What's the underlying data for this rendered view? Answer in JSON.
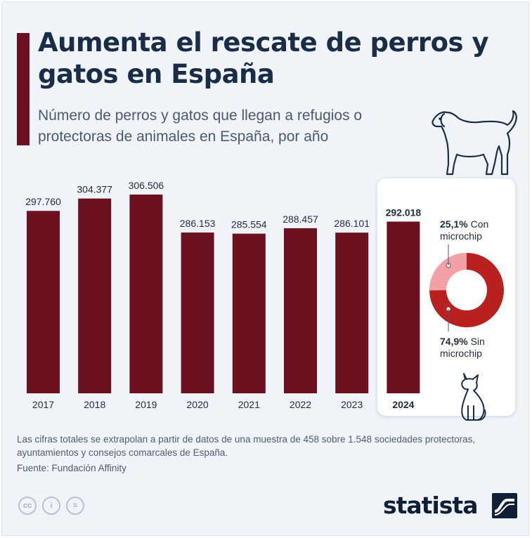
{
  "title": "Aumenta el rescate de perros y gatos en España",
  "subtitle": "Número de perros y gatos que llegan a refugios o protectoras de animales en España, por año",
  "chart_data": [
    {
      "type": "bar",
      "categories": [
        "2017",
        "2018",
        "2019",
        "2020",
        "2021",
        "2022",
        "2023",
        "2024"
      ],
      "values": [
        297760,
        304377,
        306506,
        286153,
        285554,
        288457,
        286101,
        292018
      ],
      "value_labels": [
        "297.760",
        "304.377",
        "306.506",
        "286.153",
        "285.554",
        "288.457",
        "286.101",
        "292.018"
      ],
      "highlighted_category": "2024",
      "bar_color": "#6b111f",
      "grid": false
    },
    {
      "type": "pie",
      "variant": "donut",
      "slices": [
        {
          "value_label": "25,1%",
          "label": "Con microchip",
          "value": 25.1,
          "color": "#f2a1a5"
        },
        {
          "value_label": "74,9%",
          "label": "Sin microchip",
          "value": 74.9,
          "color": "#b8211f"
        }
      ]
    }
  ],
  "note": "Las cifras totales se extrapolan a partir de datos de una muestra de 458 sobre 1.548 sociedades protectoras, ayuntamientos y consejos comarcales de España.",
  "source": "Fuente: Fundación Affinity",
  "footer": {
    "license_icons": [
      "cc-icon",
      "person-icon",
      "equals-icon"
    ],
    "license_glyphs": [
      "cc",
      "i",
      "="
    ],
    "brand": "statista"
  }
}
